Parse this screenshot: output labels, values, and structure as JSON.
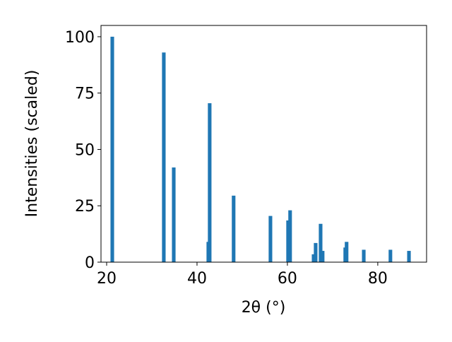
{
  "chart_data": {
    "type": "bar",
    "x": [
      21.25,
      32.65,
      34.85,
      42.5,
      42.8,
      48.1,
      56.25,
      60.15,
      60.6,
      65.8,
      66.25,
      67.35,
      67.8,
      72.8,
      73.1,
      76.9,
      82.8,
      86.9
    ],
    "values": [
      100,
      93,
      42,
      9,
      70.5,
      29.5,
      20.5,
      18.5,
      23,
      3.5,
      8.5,
      17,
      5,
      6.5,
      9,
      5.5,
      5.5,
      5
    ],
    "color": "#1f77b4",
    "xlabel": "2θ (°)",
    "ylabel": "Intensities (scaled)",
    "xlim": [
      18.75,
      90.8
    ],
    "ylim": [
      0,
      105
    ],
    "xticks": [
      20,
      40,
      60,
      80
    ],
    "yticks": [
      0,
      25,
      50,
      75,
      100
    ]
  }
}
